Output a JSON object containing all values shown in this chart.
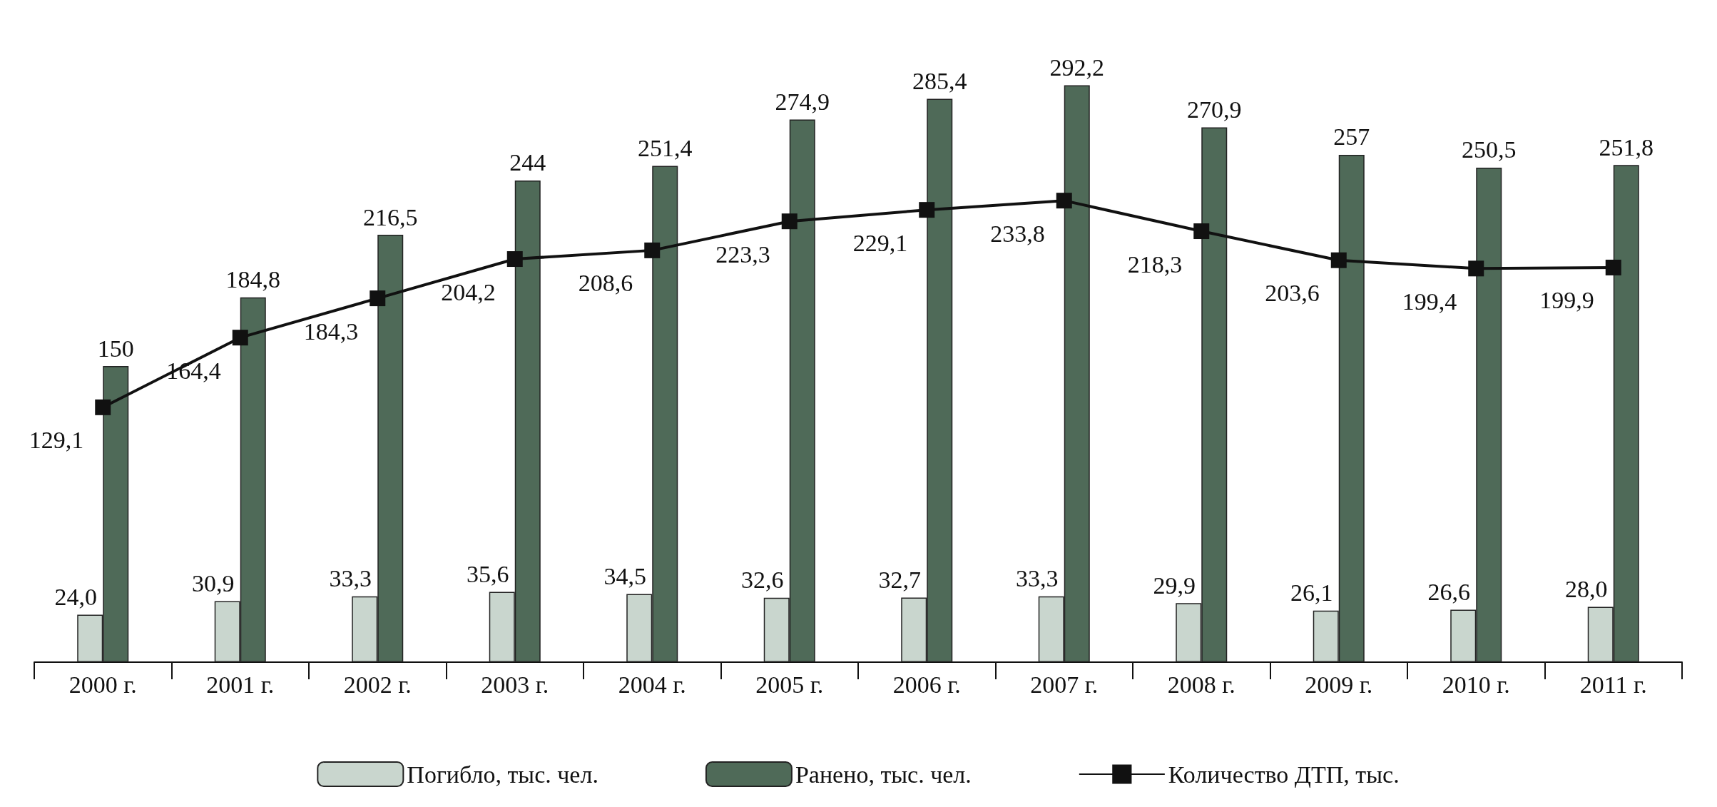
{
  "chart_data": {
    "type": "bar",
    "categories": [
      "2000 г.",
      "2001 г.",
      "2002 г.",
      "2003 г.",
      "2004 г.",
      "2005 г.",
      "2006 г.",
      "2007 г.",
      "2008 г.",
      "2009 г.",
      "2010 г.",
      "2011 г."
    ],
    "series": [
      {
        "name": "Погибло, тыс. чел.",
        "color": "#c9d6ce",
        "values": [
          24.0,
          30.9,
          33.3,
          35.6,
          34.5,
          32.6,
          32.7,
          33.3,
          29.9,
          26.1,
          26.6,
          28.0
        ],
        "value_labels": [
          "24,0",
          "30,9",
          "33,3",
          "35,6",
          "34,5",
          "32,6",
          "32,7",
          "33,3",
          "29,9",
          "26,1",
          "26,6",
          "28,0"
        ]
      },
      {
        "name": "Ранено, тыс. чел.",
        "color": "#4f6a58",
        "values": [
          150,
          184.8,
          216.5,
          244,
          251.4,
          274.9,
          285.4,
          292.2,
          270.9,
          257,
          250.5,
          251.8
        ],
        "value_labels": [
          "150",
          "184,8",
          "216,5",
          "244",
          "251,4",
          "274,9",
          "285,4",
          "292,2",
          "270,9",
          "257",
          "250,5",
          "251,8"
        ]
      },
      {
        "name": "Количество ДТП, тыс.",
        "type": "line",
        "color": "#111111",
        "values": [
          129.1,
          164.4,
          184.3,
          204.2,
          208.6,
          223.3,
          229.1,
          233.8,
          218.3,
          203.6,
          199.4,
          199.9
        ],
        "value_labels": [
          "129,1",
          "164,4",
          "184,3",
          "204,2",
          "208,6",
          "223,3",
          "229,1",
          "233,8",
          "218,3",
          "203,6",
          "199,4",
          "199,9"
        ]
      }
    ],
    "marker": "square",
    "legend": "bottom",
    "grid": false
  }
}
